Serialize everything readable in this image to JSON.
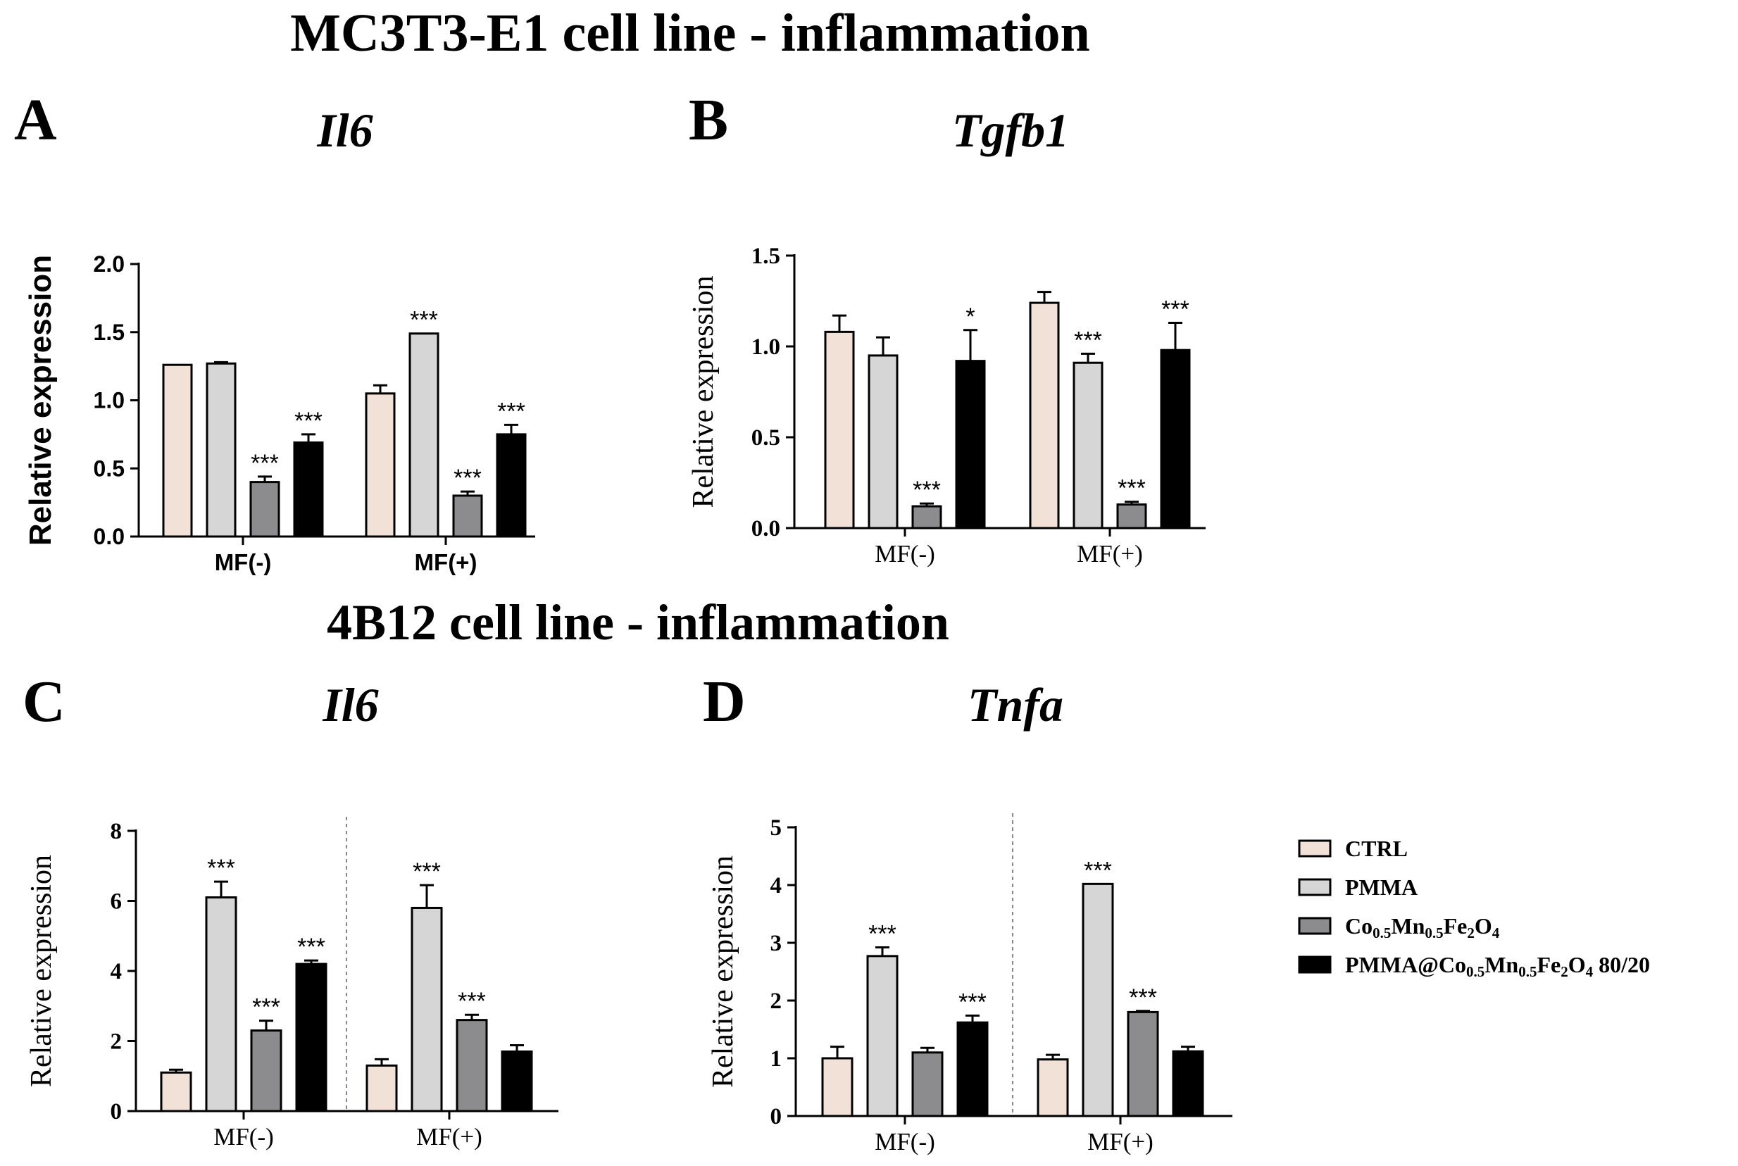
{
  "figure": {
    "heading_top": "MC3T3-E1 cell line - inflammation",
    "heading_bottom": "4B12 cell line - inflammation"
  },
  "colors": {
    "CTRL": "#f2e1d7",
    "PMMA": "#d6d6d6",
    "Co0.5Mn0.5Fe2O4": "#8c8c8e",
    "PMMA@Co0.5Mn0.5Fe2O4 80/20": "#000000"
  },
  "legend": {
    "items": [
      {
        "key": "CTRL",
        "parts": [
          {
            "t": "CTRL",
            "s": "n"
          }
        ]
      },
      {
        "key": "PMMA",
        "parts": [
          {
            "t": "PMMA",
            "s": "n"
          }
        ]
      },
      {
        "key": "Co0.5Mn0.5Fe2O4",
        "parts": [
          {
            "t": "Co",
            "s": "n"
          },
          {
            "t": "0.5",
            "s": "sub"
          },
          {
            "t": "Mn",
            "s": "n"
          },
          {
            "t": "0.5",
            "s": "sub"
          },
          {
            "t": "Fe",
            "s": "n"
          },
          {
            "t": "2",
            "s": "sub"
          },
          {
            "t": "O",
            "s": "n"
          },
          {
            "t": "4",
            "s": "sub"
          }
        ]
      },
      {
        "key": "PMMA@Co0.5Mn0.5Fe2O4 80/20",
        "parts": [
          {
            "t": "PMMA@Co",
            "s": "n"
          },
          {
            "t": "0.5",
            "s": "sub"
          },
          {
            "t": "Mn",
            "s": "n"
          },
          {
            "t": "0.5",
            "s": "sub"
          },
          {
            "t": "Fe",
            "s": "n"
          },
          {
            "t": "2",
            "s": "sub"
          },
          {
            "t": "O",
            "s": "n"
          },
          {
            "t": "4",
            "s": "sub"
          },
          {
            "t": " 80/20",
            "s": "n"
          }
        ]
      }
    ]
  },
  "chart_data": [
    {
      "panel": "A",
      "type": "bar",
      "title": "Il6",
      "ylabel": "Relative expression",
      "xlabel": "",
      "ylim": [
        0,
        2.0
      ],
      "yticks": [
        "0.0",
        "0.5",
        "1.0",
        "1.5",
        "2.0"
      ],
      "categories": [
        "MF(-)",
        "MF(+)"
      ],
      "divider": false,
      "style": "sans",
      "series": [
        {
          "name": "CTRL",
          "values": [
            1.26,
            1.05
          ],
          "errors": [
            0,
            0.06
          ],
          "sig": [
            "",
            ""
          ]
        },
        {
          "name": "PMMA",
          "values": [
            1.27,
            1.49
          ],
          "errors": [
            0.01,
            0
          ],
          "sig": [
            "",
            "***"
          ]
        },
        {
          "name": "Co0.5Mn0.5Fe2O4",
          "values": [
            0.4,
            0.3
          ],
          "errors": [
            0.04,
            0.03
          ],
          "sig": [
            "***",
            "***"
          ]
        },
        {
          "name": "PMMA@Co0.5Mn0.5Fe2O4 80/20",
          "values": [
            0.69,
            0.75
          ],
          "errors": [
            0.06,
            0.07
          ],
          "sig": [
            "***",
            "***"
          ]
        }
      ]
    },
    {
      "panel": "B",
      "type": "bar",
      "title": "Tgfb1",
      "ylabel": "Relative expression",
      "xlabel": "",
      "ylim": [
        0,
        1.5
      ],
      "yticks": [
        "0.0",
        "0.5",
        "1.0",
        "1.5"
      ],
      "categories": [
        "MF(-)",
        "MF(+)"
      ],
      "divider": false,
      "style": "serif",
      "series": [
        {
          "name": "CTRL",
          "values": [
            1.08,
            1.24
          ],
          "errors": [
            0.09,
            0.06
          ],
          "sig": [
            "",
            ""
          ]
        },
        {
          "name": "PMMA",
          "values": [
            0.95,
            0.91
          ],
          "errors": [
            0.1,
            0.05
          ],
          "sig": [
            "",
            "***"
          ]
        },
        {
          "name": "Co0.5Mn0.5Fe2O4",
          "values": [
            0.12,
            0.13
          ],
          "errors": [
            0.015,
            0.015
          ],
          "sig": [
            "***",
            "***"
          ]
        },
        {
          "name": "PMMA@Co0.5Mn0.5Fe2O4 80/20",
          "values": [
            0.92,
            0.98
          ],
          "errors": [
            0.17,
            0.15
          ],
          "sig": [
            "*",
            "***"
          ]
        }
      ]
    },
    {
      "panel": "C",
      "type": "bar",
      "title": "Il6",
      "ylabel": "Relative expression",
      "xlabel": "",
      "ylim": [
        0,
        8
      ],
      "yticks": [
        "0",
        "2",
        "4",
        "6",
        "8"
      ],
      "categories": [
        "MF(-)",
        "MF(+)"
      ],
      "divider": true,
      "style": "serif",
      "series": [
        {
          "name": "CTRL",
          "values": [
            1.1,
            1.3
          ],
          "errors": [
            0.08,
            0.18
          ],
          "sig": [
            "",
            ""
          ]
        },
        {
          "name": "PMMA",
          "values": [
            6.1,
            5.8
          ],
          "errors": [
            0.45,
            0.65
          ],
          "sig": [
            "***",
            "***"
          ]
        },
        {
          "name": "Co0.5Mn0.5Fe2O4",
          "values": [
            2.3,
            2.6
          ],
          "errors": [
            0.28,
            0.15
          ],
          "sig": [
            "***",
            "***"
          ]
        },
        {
          "name": "PMMA@Co0.5Mn0.5Fe2O4 80/20",
          "values": [
            4.2,
            1.7
          ],
          "errors": [
            0.1,
            0.18
          ],
          "sig": [
            "***",
            ""
          ]
        }
      ]
    },
    {
      "panel": "D",
      "type": "bar",
      "title": "Tnfa",
      "ylabel": "Relative expression",
      "xlabel": "",
      "ylim": [
        0,
        5
      ],
      "yticks": [
        "0",
        "1",
        "2",
        "3",
        "4",
        "5"
      ],
      "categories": [
        "MF(-)",
        "MF(+)"
      ],
      "divider": true,
      "style": "serif",
      "series": [
        {
          "name": "CTRL",
          "values": [
            1.0,
            0.98
          ],
          "errors": [
            0.2,
            0.08
          ],
          "sig": [
            "",
            ""
          ]
        },
        {
          "name": "PMMA",
          "values": [
            2.77,
            4.02
          ],
          "errors": [
            0.15,
            0
          ],
          "sig": [
            "***",
            "***"
          ]
        },
        {
          "name": "Co0.5Mn0.5Fe2O4",
          "values": [
            1.1,
            1.8
          ],
          "errors": [
            0.08,
            0.02
          ],
          "sig": [
            "",
            "***"
          ]
        },
        {
          "name": "PMMA@Co0.5Mn0.5Fe2O4 80/20",
          "values": [
            1.62,
            1.12
          ],
          "errors": [
            0.12,
            0.08
          ],
          "sig": [
            "***",
            ""
          ]
        }
      ]
    }
  ]
}
